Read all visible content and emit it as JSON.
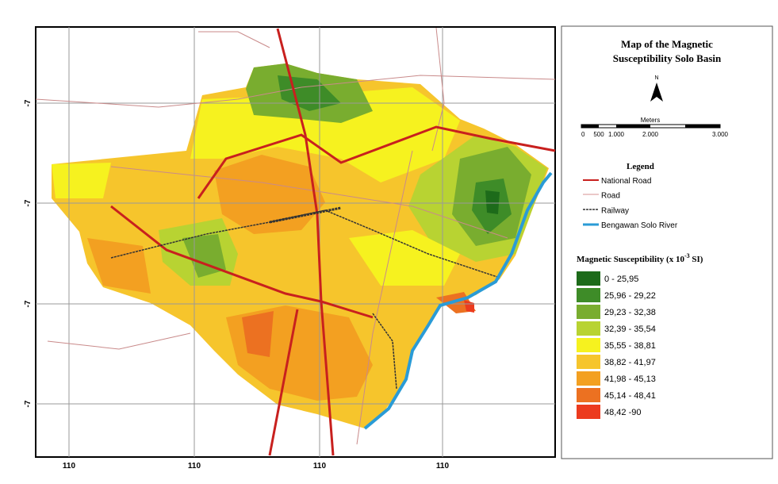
{
  "map": {
    "x_labels": [
      "110",
      "110",
      "110",
      "110"
    ],
    "y_labels": [
      "-7",
      "-7",
      "-7",
      "-7"
    ]
  },
  "panel": {
    "title_lines": [
      "Map of the Magnetic",
      "Susceptibility Solo Basin"
    ],
    "north": "N",
    "scale_unit": "Meters",
    "scale_labels": [
      "0",
      "500",
      "1.000",
      "2.000",
      "3.000"
    ],
    "legend_title": "Legend",
    "legend_items": [
      "National Road",
      "Road",
      "Railway",
      "Bengawan Solo River"
    ],
    "classes_title": [
      "Magnetic Susceptibility (x 10",
      "-3",
      " SI)"
    ],
    "classes": [
      {
        "label": "0 - 25,95",
        "color": "#1d6b1a"
      },
      {
        "label": "25,96 - 29,22",
        "color": "#3e8c28"
      },
      {
        "label": "29,23 - 32,38",
        "color": "#79ad2f"
      },
      {
        "label": "32,39 - 35,54",
        "color": "#b8d332"
      },
      {
        "label": "35,55 - 38,81",
        "color": "#f6f21f"
      },
      {
        "label": "38,82 - 41,97",
        "color": "#f6c52c"
      },
      {
        "label": "41,98 - 45,13",
        "color": "#f3a021"
      },
      {
        "label": "45,14 - 48,41",
        "color": "#ec7121"
      },
      {
        "label": "48,42 -90",
        "color": "#ec3b1e"
      }
    ]
  }
}
